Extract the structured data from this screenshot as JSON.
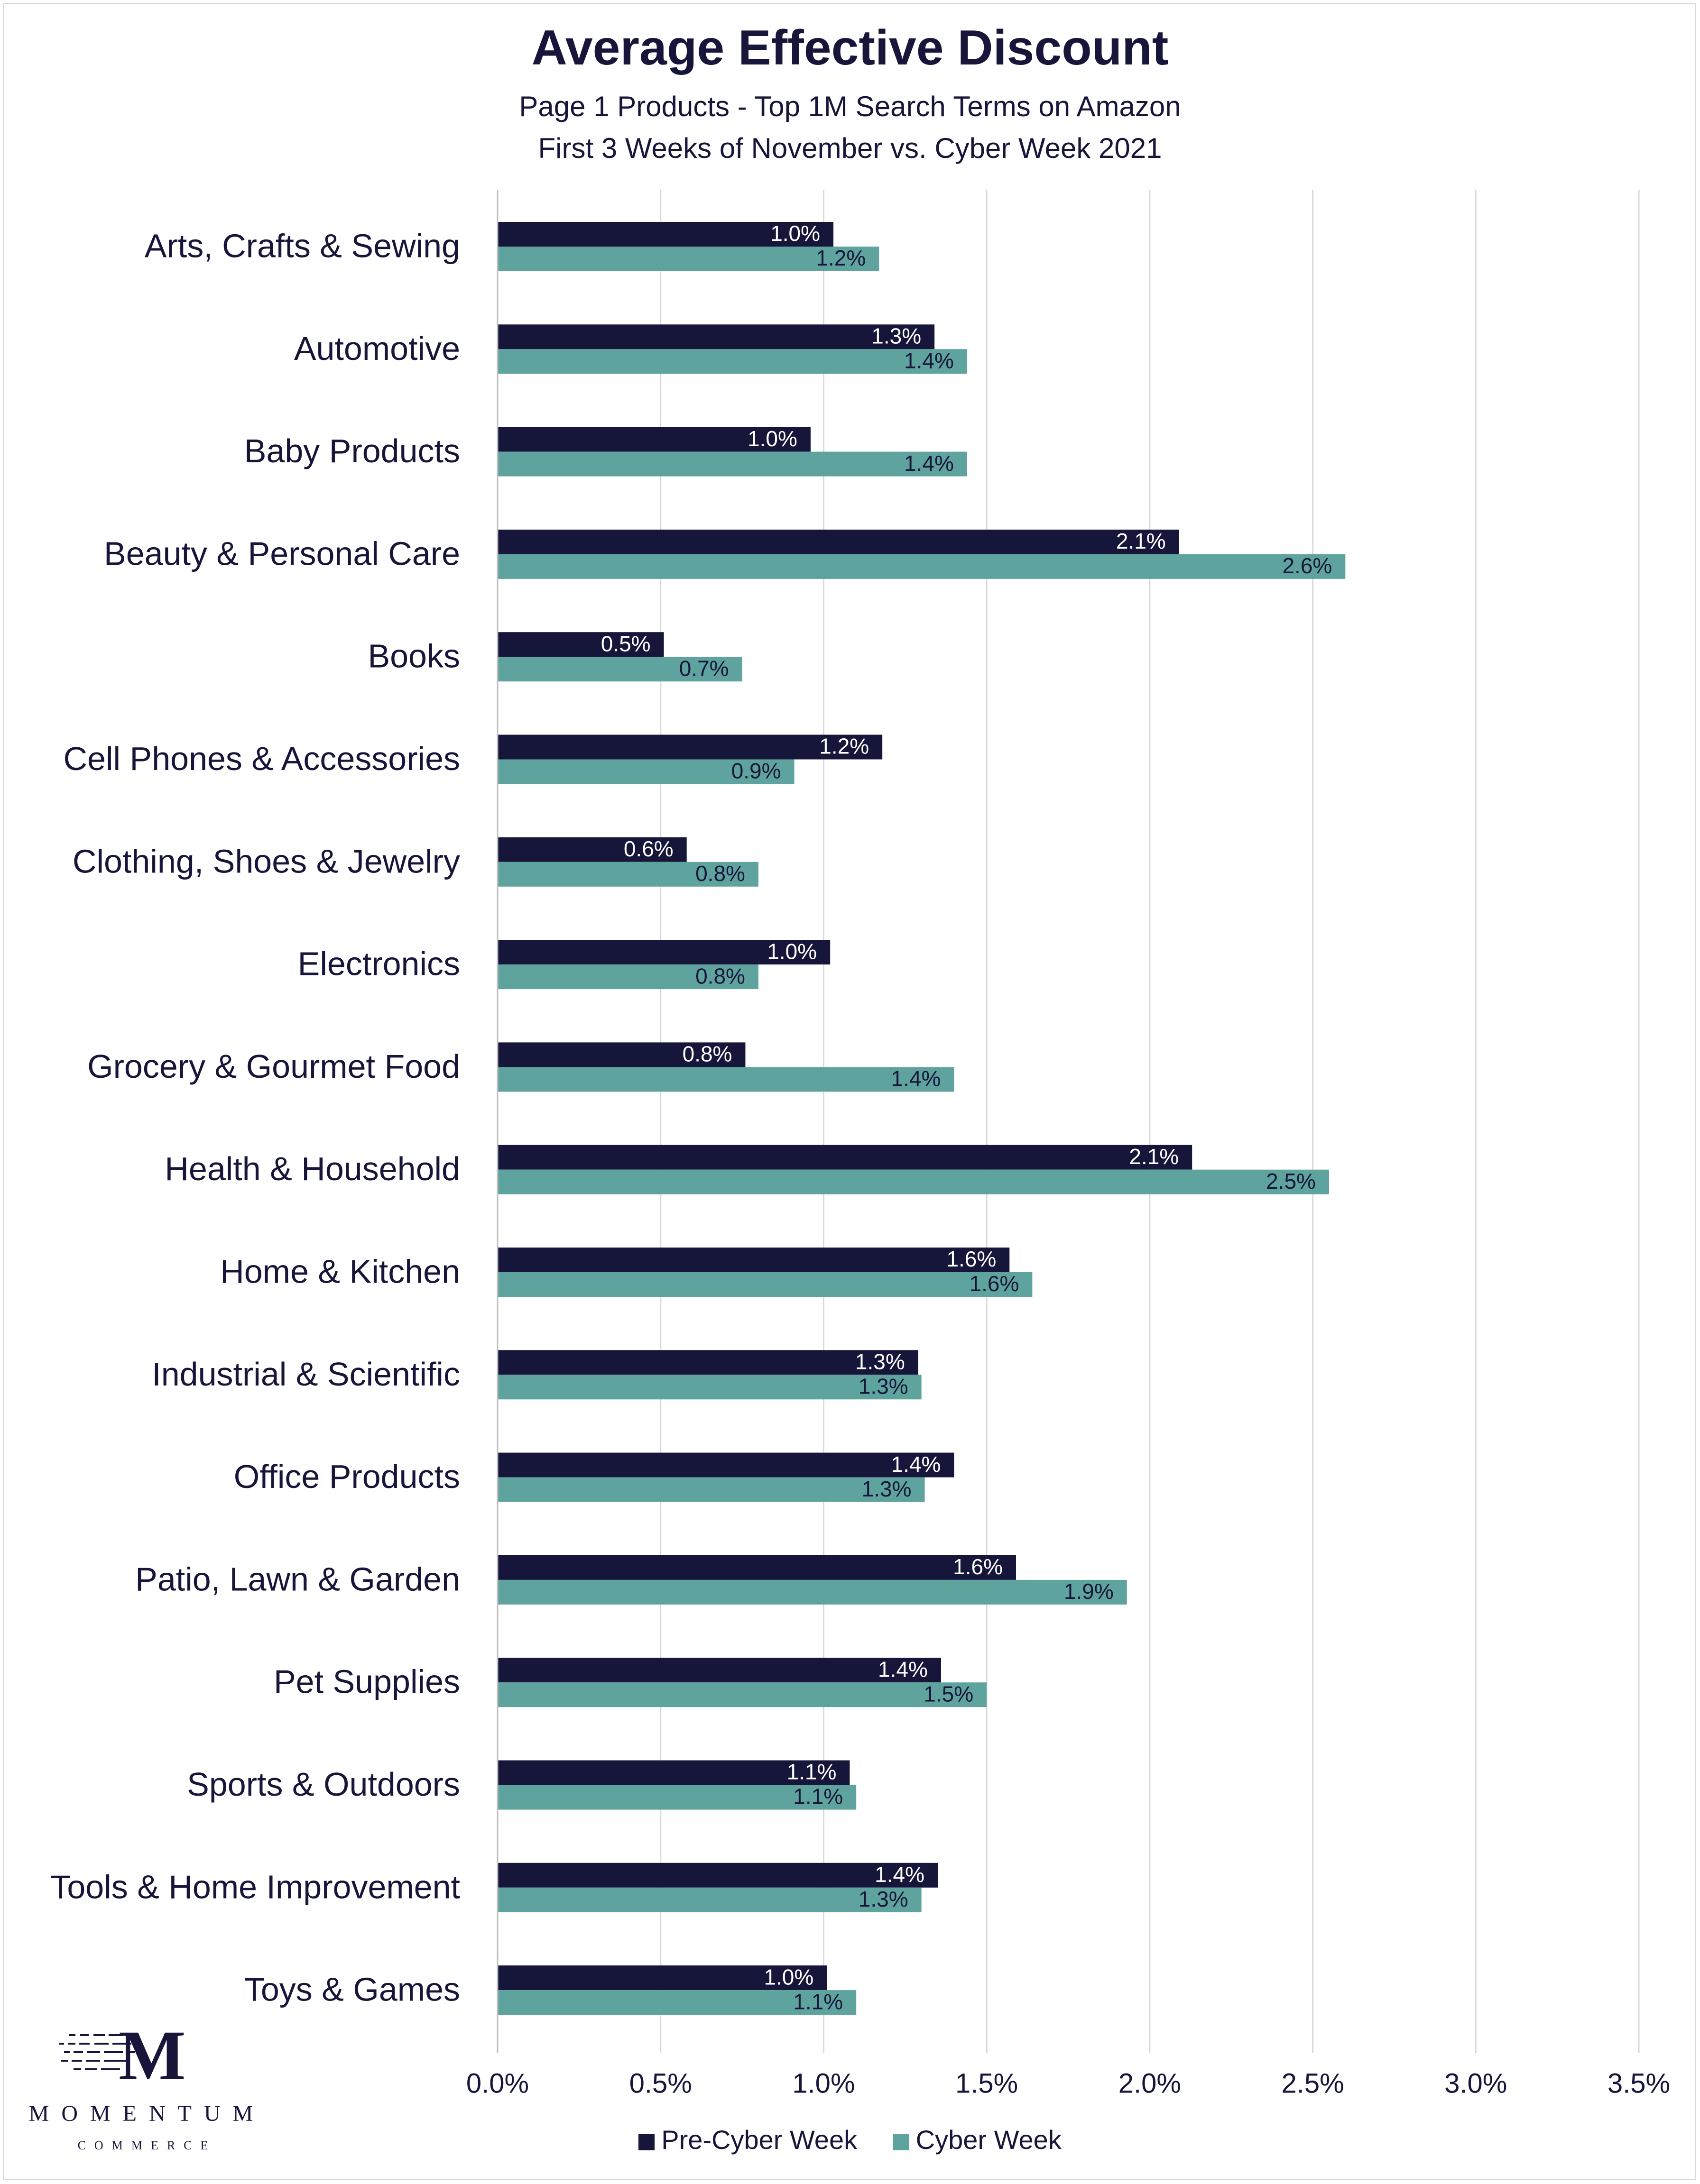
{
  "chart_data": {
    "type": "bar",
    "orientation": "horizontal",
    "title": "Average Effective Discount",
    "subtitle_lines": [
      "Page 1 Products - Top 1M Search Terms on Amazon",
      "First 3 Weeks of November vs. Cyber Week 2021"
    ],
    "categories": [
      "Arts, Crafts & Sewing",
      "Automotive",
      "Baby Products",
      "Beauty & Personal Care",
      "Books",
      "Cell Phones & Accessories",
      "Clothing, Shoes & Jewelry",
      "Electronics",
      "Grocery & Gourmet Food",
      "Health & Household",
      "Home & Kitchen",
      "Industrial & Scientific",
      "Office Products",
      "Patio, Lawn & Garden",
      "Pet Supplies",
      "Sports & Outdoors",
      "Tools & Home Improvement",
      "Toys & Games"
    ],
    "series": [
      {
        "name": "Pre-Cyber Week",
        "color": "#16153a",
        "label_color": "#ffffff",
        "values": [
          1.03,
          1.34,
          0.96,
          2.09,
          0.51,
          1.18,
          0.58,
          1.02,
          0.76,
          2.13,
          1.57,
          1.29,
          1.4,
          1.59,
          1.36,
          1.08,
          1.35,
          1.01
        ],
        "labels": [
          "1.0%",
          "1.3%",
          "1.0%",
          "2.1%",
          "0.5%",
          "1.2%",
          "0.6%",
          "1.0%",
          "0.8%",
          "2.1%",
          "1.6%",
          "1.3%",
          "1.4%",
          "1.6%",
          "1.4%",
          "1.1%",
          "1.4%",
          "1.0%"
        ]
      },
      {
        "name": "Cyber Week",
        "color": "#5fa39e",
        "label_color": "#17163a",
        "values": [
          1.17,
          1.44,
          1.44,
          2.6,
          0.75,
          0.91,
          0.8,
          0.8,
          1.4,
          2.55,
          1.64,
          1.3,
          1.31,
          1.93,
          1.5,
          1.1,
          1.3,
          1.1
        ],
        "labels": [
          "1.2%",
          "1.4%",
          "1.4%",
          "2.6%",
          "0.7%",
          "0.9%",
          "0.8%",
          "0.8%",
          "1.4%",
          "2.5%",
          "1.6%",
          "1.3%",
          "1.3%",
          "1.9%",
          "1.5%",
          "1.1%",
          "1.3%",
          "1.1%"
        ]
      }
    ],
    "xlim": [
      0,
      3.5
    ],
    "x_ticks": [
      0,
      0.5,
      1.0,
      1.5,
      2.0,
      2.5,
      3.0,
      3.5
    ],
    "x_tick_labels": [
      "0.0%",
      "0.5%",
      "1.0%",
      "1.5%",
      "2.0%",
      "2.5%",
      "3.0%",
      "3.5%"
    ],
    "grid": "vertical",
    "legend_position": "bottom"
  },
  "logo": {
    "mark": "M",
    "name": "MOMENTUM",
    "tagline": "COMMERCE"
  }
}
